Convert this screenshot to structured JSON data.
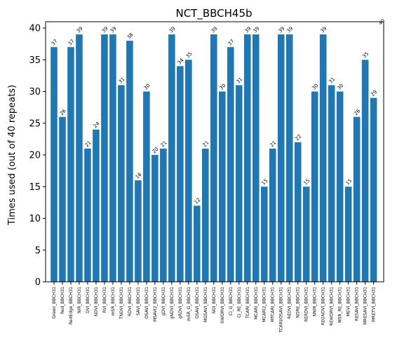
{
  "chart_data": {
    "type": "bar",
    "title": "NCT_BBCH45b",
    "xlabel": "",
    "ylabel": "Times used (out of 40 repeats)",
    "ylim": [
      0,
      41
    ],
    "yticks": [
      0,
      5,
      10,
      15,
      20,
      25,
      30,
      35,
      40
    ],
    "grid": false,
    "bar_color": "#1f77b4",
    "categories": [
      "Green_BBCH31",
      "Red_BBCH31",
      "RedEdge_BBCH31",
      "NIR_BBCH31",
      "DVI_BBCH31",
      "NDVI_BBCH31",
      "RVI_BBCH31",
      "mSR_BBCH31",
      "TNDVI_BBCH31",
      "RDVI_BBCH31",
      "SAVI_BBCH31",
      "OSAVI_BBCH31",
      "MSAVI2_BBCH31",
      "gDVI_BBCH31",
      "gNDVI_BBCH31",
      "gRDVI_BBCH31",
      "mSR_G_BBCH31",
      "GSAVI_BBCH31",
      "MGSAVI_BBCH31",
      "NGI_BBCH31",
      "GWDRVI_BBCH31",
      "CI_G_BBCH31",
      "CI_RE_BBCH31",
      "TCARI_BBCH31",
      "MCARI_BBCH31",
      "MCARI2_BBCH31",
      "MTCARI_BBCH31",
      "TCARI/OSAVI_BBCH31",
      "REDVI_BBCH31",
      "NDRE_BBCH31",
      "RERDVI_BBCH31",
      "NNIR_BBCH31",
      "REGNDVI_BBCH31",
      "REWDRVI_BBCH31",
      "MSR_RE_BBCH31",
      "MEVI_BBCH31",
      "RESAVI_BBCH31",
      "MRESAVI_BBCH31",
      "MRETVI_BBCH31"
    ],
    "values": [
      37,
      26,
      37,
      39,
      21,
      24,
      39,
      39,
      31,
      38,
      16,
      30,
      20,
      21,
      39,
      34,
      35,
      12,
      21,
      39,
      30,
      37,
      31,
      39,
      39,
      15,
      21,
      39,
      39,
      22,
      15,
      30,
      39,
      31,
      30,
      15,
      26,
      35,
      29
    ],
    "extra_annotation": {
      "text": "40"
    }
  }
}
